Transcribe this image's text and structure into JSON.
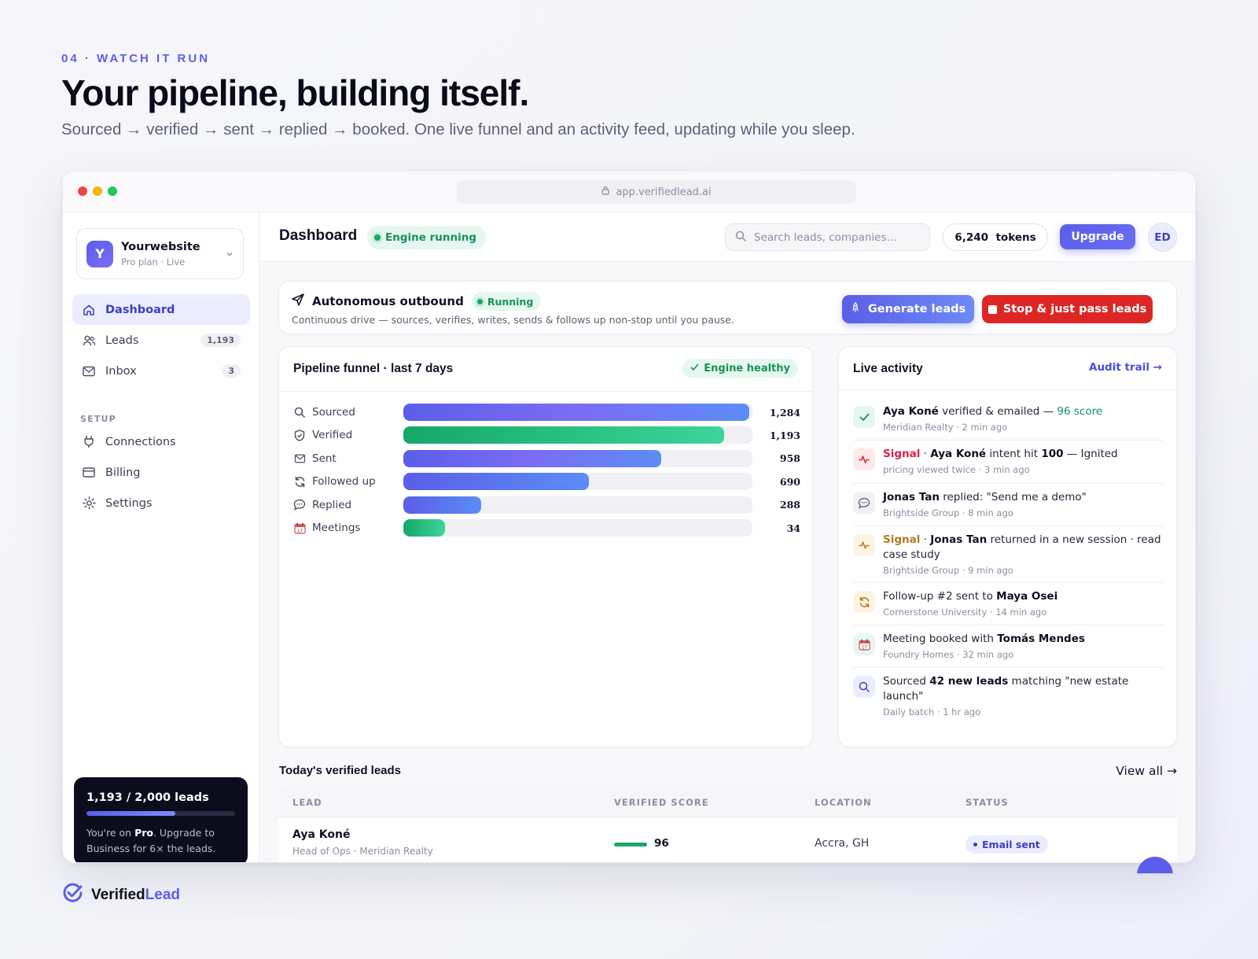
{
  "hero": {
    "eyebrow": "04 · WATCH IT RUN",
    "title": "Your pipeline, building itself.",
    "subtitle": "Sourced → verified → sent → replied → booked. One live funnel and an activity feed, updating while you sleep."
  },
  "browser": {
    "url": "app.verifiedlead.ai",
    "dots": [
      "#ef4444",
      "#f5b400",
      "#22c55e"
    ]
  },
  "workspace": {
    "initial": "Y",
    "name": "Yourwebsite",
    "plan": "Pro plan · Live"
  },
  "sidebar": {
    "items": [
      {
        "label": "Dashboard",
        "icon": "home-icon",
        "active": true
      },
      {
        "label": "Leads",
        "icon": "users-icon",
        "badge": "1,193"
      },
      {
        "label": "Inbox",
        "icon": "mail-icon",
        "badge": "3"
      }
    ],
    "setup_label": "SETUP",
    "setup_items": [
      {
        "label": "Connections",
        "icon": "plug-icon"
      },
      {
        "label": "Billing",
        "icon": "card-icon"
      },
      {
        "label": "Settings",
        "icon": "gear-icon"
      }
    ],
    "usage": {
      "title": "1,193 / 2,000 leads",
      "progress": 0.5965,
      "text_prefix": "You're on ",
      "plan": "Pro",
      "text_suffix": ". Upgrade to Business for 6× the leads."
    }
  },
  "topbar": {
    "title": "Dashboard",
    "engine_status": "Engine running",
    "search_placeholder": "Search leads, companies...",
    "tokens": "6,240  tokens",
    "upgrade_label": "Upgrade",
    "avatar": "ED"
  },
  "outbound": {
    "title": "Autonomous outbound",
    "status": "Running",
    "subtitle": "Continuous drive — sources, verifies, writes, sends & follows up non-stop until you pause.",
    "generate_label": "Generate leads",
    "stop_label": "Stop & just pass leads"
  },
  "funnel": {
    "title": "Pipeline funnel · last 7 days",
    "health": "Engine healthy",
    "rows": [
      {
        "label": "Sourced",
        "icon": "search-icon",
        "value": 1284,
        "display": "1,284",
        "fill": "linear-gradient(90deg,#5b5ee8,#7b6cf6 50%,#5b8cf6)"
      },
      {
        "label": "Verified",
        "icon": "shield-check-icon",
        "value": 1193,
        "display": "1,193",
        "fill": "linear-gradient(90deg,#14a86a,#3ed49a)"
      },
      {
        "label": "Sent",
        "icon": "mail-icon",
        "value": 958,
        "display": "958",
        "fill": "linear-gradient(90deg,#5b5ee8,#7b6cf6 50%,#5b8cf6)"
      },
      {
        "label": "Followed up",
        "icon": "refresh-icon",
        "value": 690,
        "display": "690",
        "fill": "linear-gradient(90deg,#5b5ee8,#5b8cf6)"
      },
      {
        "label": "Replied",
        "icon": "speech-bubble-icon",
        "value": 288,
        "display": "288",
        "fill": "linear-gradient(90deg,#5b5ee8,#5b8cf6)"
      },
      {
        "label": "Meetings",
        "icon": "calendar-icon",
        "value": 34,
        "display": "34",
        "fill": "linear-gradient(90deg,#14a86a,#3ed49a)"
      }
    ]
  },
  "activity": {
    "title": "Live activity",
    "audit_label": "Audit trail →",
    "items": [
      {
        "icon": "check-icon",
        "bg": "#e6f7ef",
        "color": "#14925c",
        "parts": [
          {
            "t": "b",
            "v": "Aya Koné"
          },
          {
            "t": "s",
            "v": " verified & emailed — "
          },
          {
            "t": "g",
            "v": "96 score"
          }
        ],
        "meta": "Meridian Realty · 2 min ago"
      },
      {
        "icon": "pulse-icon",
        "bg": "#fdeaea",
        "color": "#dc2626",
        "parts": [
          {
            "t": "r",
            "v": "Signal"
          },
          {
            "t": "s",
            "v": " · "
          },
          {
            "t": "b",
            "v": "Aya Koné"
          },
          {
            "t": "s",
            "v": " intent hit "
          },
          {
            "t": "b",
            "v": "100"
          },
          {
            "t": "s",
            "v": " — Ignited"
          }
        ],
        "meta": "pricing viewed twice · 3 min ago"
      },
      {
        "icon": "speech-bubble-icon",
        "bg": "#f0f0f5",
        "color": "#5b6175",
        "parts": [
          {
            "t": "b",
            "v": "Jonas Tan"
          },
          {
            "t": "s",
            "v": " replied: \"Send me a demo\""
          }
        ],
        "meta": "Brightside Group · 8 min ago"
      },
      {
        "icon": "pulse-icon",
        "bg": "#fdf3e2",
        "color": "#b7791f",
        "parts": [
          {
            "t": "o",
            "v": "Signal"
          },
          {
            "t": "s",
            "v": " · "
          },
          {
            "t": "b",
            "v": "Jonas Tan"
          },
          {
            "t": "s",
            "v": " returned in a new session · read case study"
          }
        ],
        "meta": "Brightside Group · 9 min ago"
      },
      {
        "icon": "refresh-icon",
        "bg": "#fdf3e2",
        "color": "#b7791f",
        "parts": [
          {
            "t": "s",
            "v": "Follow-up #2 sent to "
          },
          {
            "t": "b",
            "v": "Maya Osei"
          }
        ],
        "meta": "Cornerstone University · 14 min ago"
      },
      {
        "icon": "calendar-icon",
        "bg": "#e6f7ef",
        "color": "#14925c",
        "parts": [
          {
            "t": "s",
            "v": "Meeting booked with "
          },
          {
            "t": "b",
            "v": "Tomás Mendes"
          }
        ],
        "meta": "Foundry Homes · 32 min ago"
      },
      {
        "icon": "search-icon",
        "bg": "#ececff",
        "color": "#3b3fc4",
        "parts": [
          {
            "t": "s",
            "v": "Sourced "
          },
          {
            "t": "b",
            "v": "42 new leads"
          },
          {
            "t": "s",
            "v": " matching \"new estate launch\""
          }
        ],
        "meta": "Daily batch · 1 hr ago"
      }
    ]
  },
  "leads": {
    "title": "Today's verified leads",
    "view_all": "View all →",
    "columns": [
      "LEAD",
      "VERIFIED SCORE",
      "LOCATION",
      "STATUS"
    ],
    "rows": [
      {
        "name": "Aya Koné",
        "role": "Head of Ops · Meridian Realty",
        "score": "96",
        "location": "Accra, GH",
        "status": "Email sent"
      }
    ]
  },
  "brand": {
    "name": "Verified",
    "accent": "Lead"
  }
}
